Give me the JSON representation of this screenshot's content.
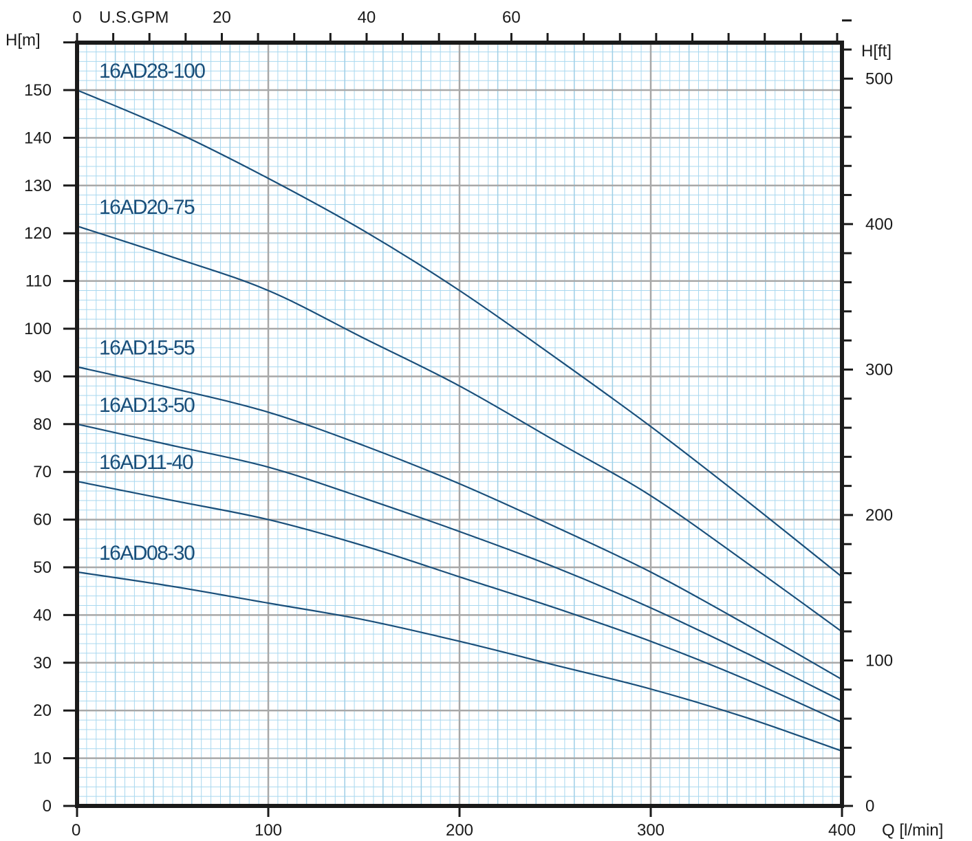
{
  "chart_data": {
    "type": "line",
    "xlabel": "Q [l/min]",
    "ylabel": "H[m]",
    "y2label": "H[ft]",
    "x2label": "U.S.GPM",
    "xlim": [
      0,
      400
    ],
    "ylim": [
      0,
      160
    ],
    "x_ticks": [
      "0",
      "100",
      "200",
      "300",
      "400"
    ],
    "y_ticks": [
      "0",
      "10",
      "20",
      "30",
      "40",
      "50",
      "60",
      "70",
      "80",
      "90",
      "100",
      "110",
      "120",
      "130",
      "140",
      "150"
    ],
    "y2_ticks": [
      "0",
      "100",
      "200",
      "300",
      "400",
      "500"
    ],
    "x2_ticks": [
      "0",
      "20",
      "40",
      "60"
    ],
    "grid": true,
    "colors": {
      "line": "#1a4f7a",
      "frame": "#1a1a1a",
      "major_grid": "#a8a8a8",
      "minor_grid": "#a9d8ef"
    },
    "series": [
      {
        "name": "16AD28-100",
        "x": [
          0,
          50,
          100,
          150,
          200,
          250,
          300,
          350,
          400
        ],
        "y": [
          150,
          141.5,
          131.5,
          120.5,
          108,
          94,
          79.5,
          64,
          48
        ]
      },
      {
        "name": "16AD20-75",
        "x": [
          0,
          50,
          100,
          150,
          200,
          250,
          300,
          350,
          400
        ],
        "y": [
          121.5,
          115,
          108,
          98,
          88,
          76.5,
          65,
          51,
          36.5
        ]
      },
      {
        "name": "16AD15-55",
        "x": [
          0,
          50,
          100,
          150,
          200,
          250,
          300,
          350,
          400
        ],
        "y": [
          92,
          87.5,
          82.5,
          75.5,
          67.5,
          58.5,
          49,
          38,
          26.5
        ]
      },
      {
        "name": "16AD13-50",
        "x": [
          0,
          50,
          100,
          150,
          200,
          250,
          300,
          350,
          400
        ],
        "y": [
          80,
          75.5,
          71,
          64.5,
          57.5,
          50,
          41.5,
          32,
          22
        ]
      },
      {
        "name": "16AD11-40",
        "x": [
          0,
          50,
          100,
          150,
          200,
          250,
          300,
          350,
          400
        ],
        "y": [
          68,
          64,
          60,
          54.5,
          48,
          41.5,
          34.5,
          26.5,
          17.5
        ]
      },
      {
        "name": "16AD08-30",
        "x": [
          0,
          50,
          100,
          150,
          200,
          250,
          300,
          350,
          400
        ],
        "y": [
          49,
          46,
          42.5,
          39,
          34.5,
          29.5,
          24.5,
          18.5,
          11.5
        ]
      }
    ]
  }
}
